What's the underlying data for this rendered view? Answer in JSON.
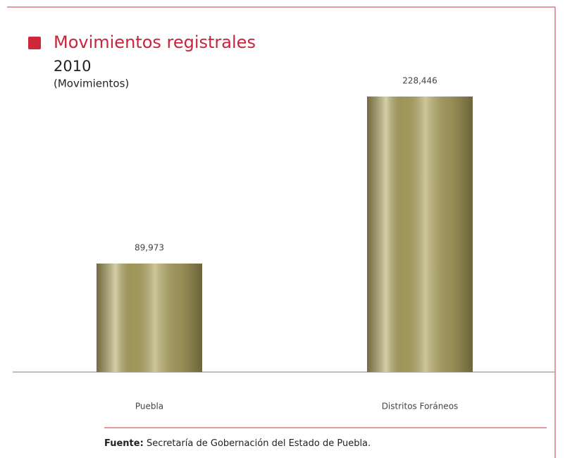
{
  "chart_data": {
    "type": "bar",
    "title": "Movimientos registrales",
    "subtitle": "2010",
    "unit_label": "(Movimientos)",
    "categories": [
      "Puebla",
      "Distritos Foráneos"
    ],
    "values": [
      89973,
      228446
    ],
    "value_labels": [
      "89,973",
      "228,446"
    ],
    "color": "#b3a864",
    "source_label": "Fuente:",
    "source": "Secretaría de Gobernación del Estado de Puebla."
  }
}
